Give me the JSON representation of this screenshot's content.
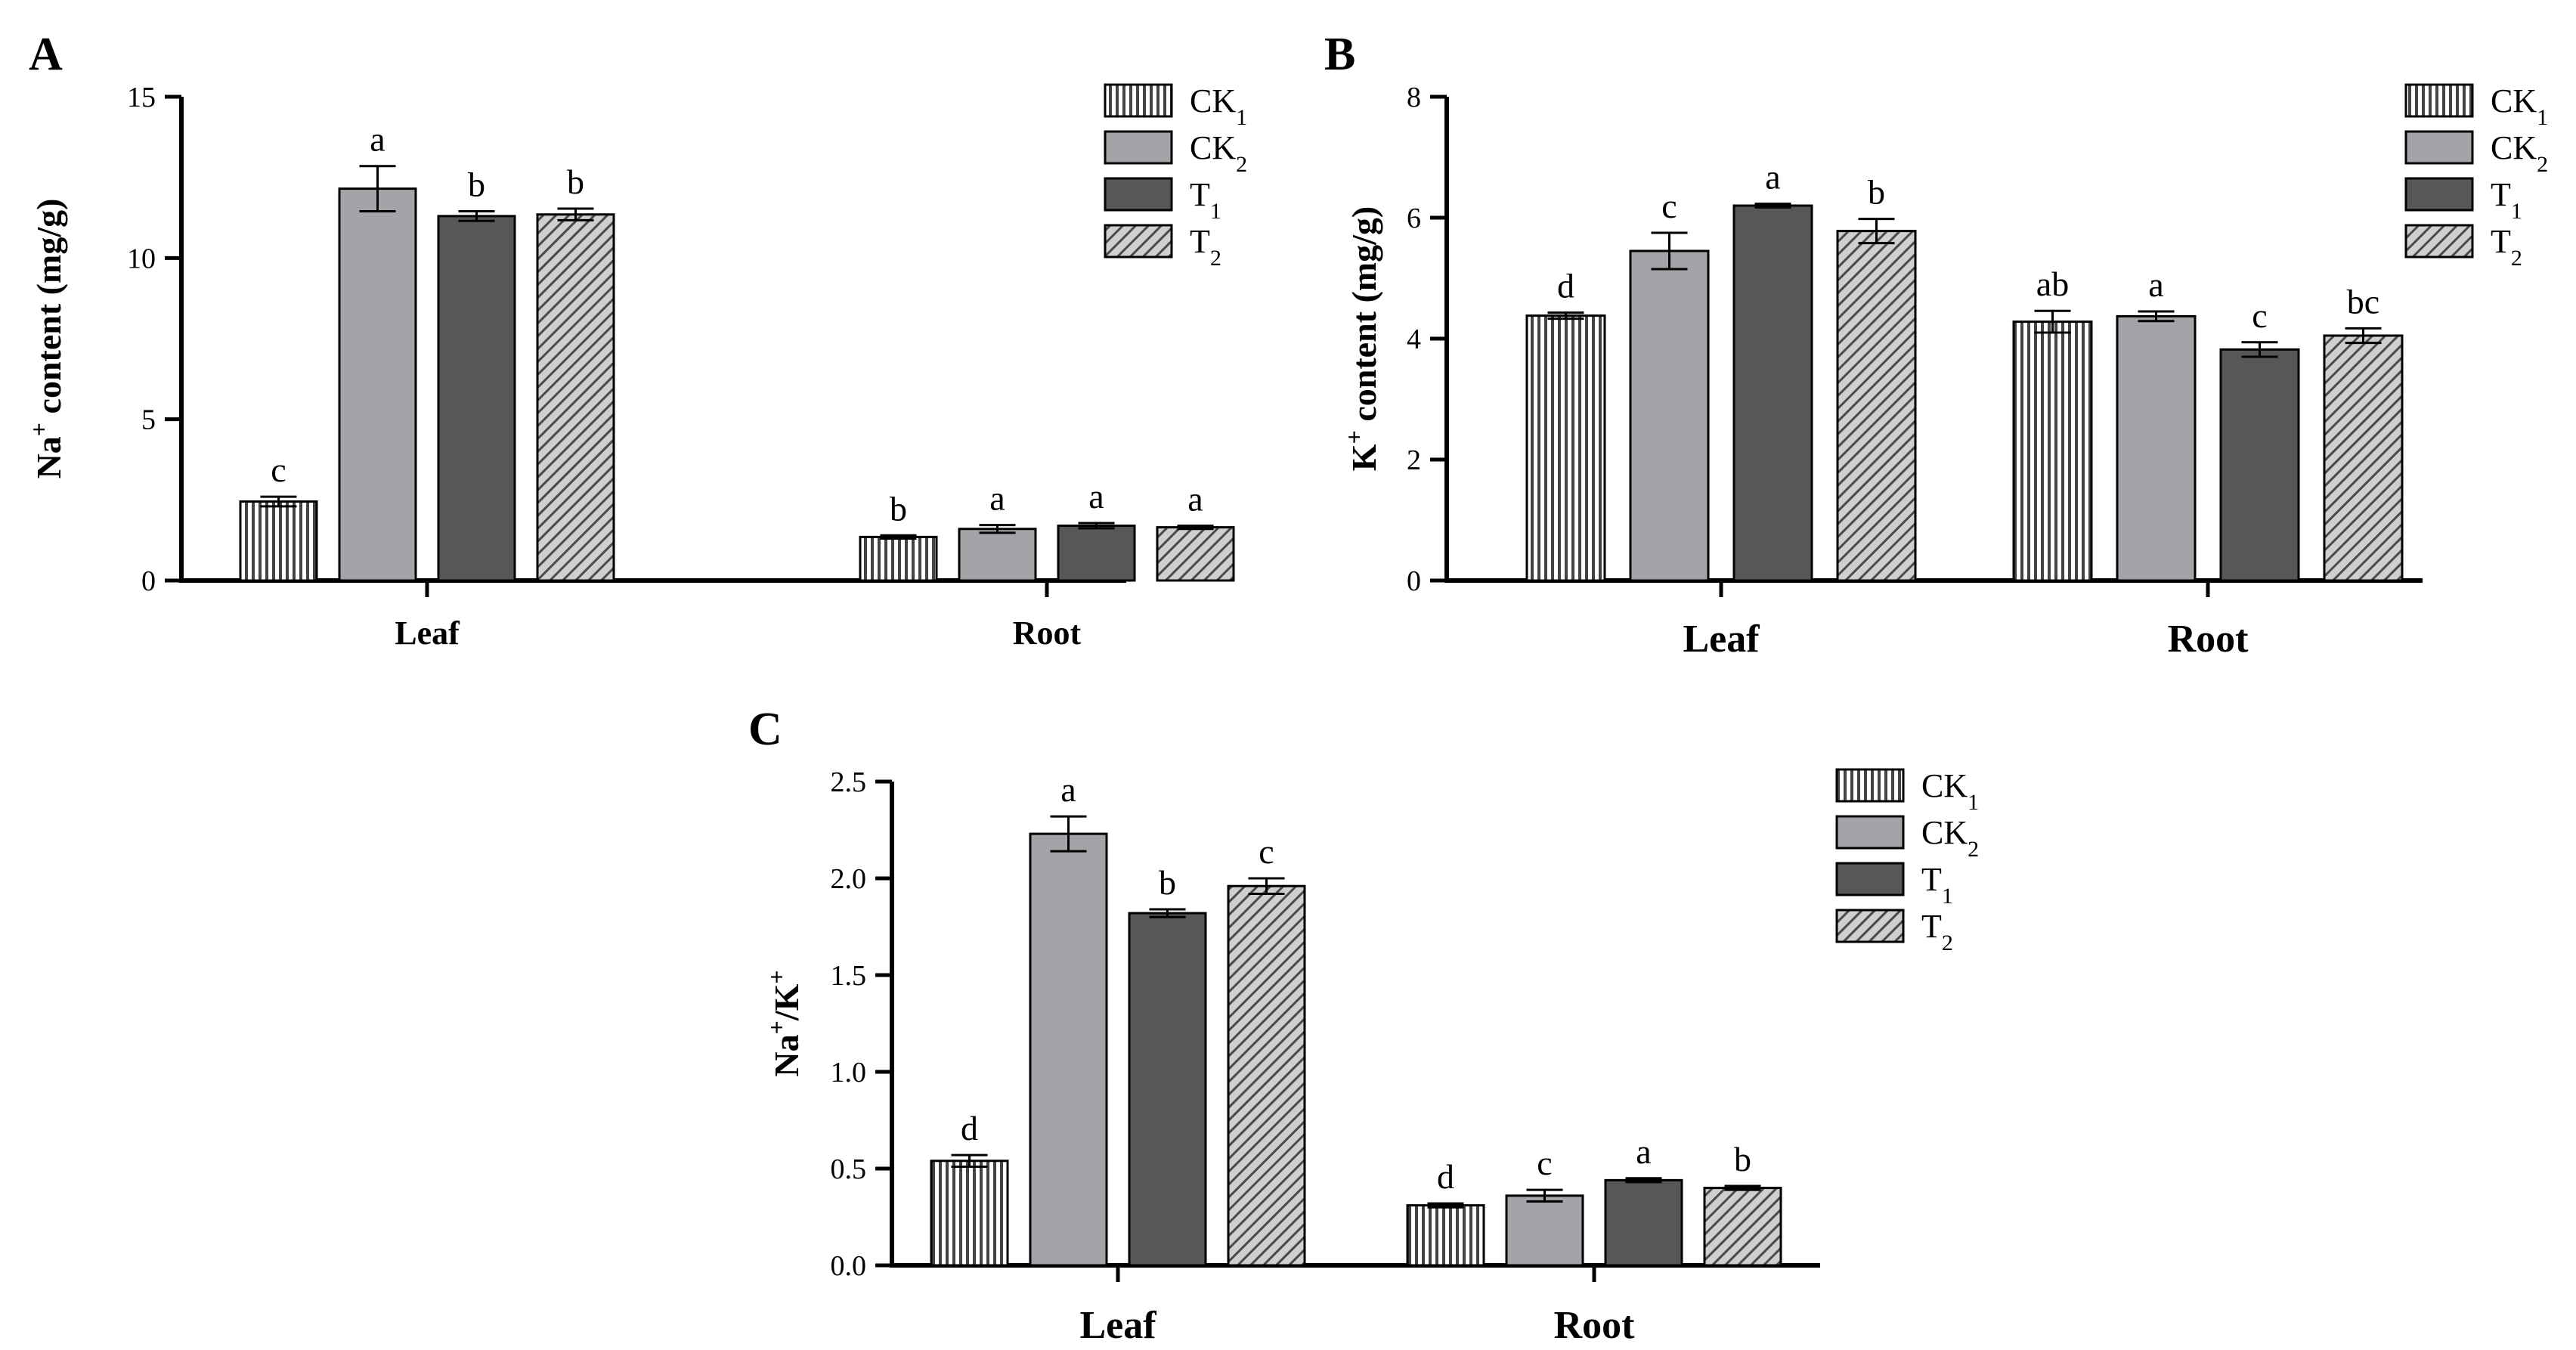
{
  "colors": {
    "CK1_fill": "#ffffff",
    "CK1_stripe": "#444444",
    "CK2_fill": "#a2a4a7",
    "T1_fill": "#575757",
    "T2_fill": "#cfcfcf",
    "T2_stripe": "#4a4a4a",
    "axis": "#000000"
  },
  "legend": [
    {
      "key": "CK1",
      "main": "CK",
      "sub": "1"
    },
    {
      "key": "CK2",
      "main": "CK",
      "sub": "2"
    },
    {
      "key": "T1",
      "main": "T",
      "sub": "1"
    },
    {
      "key": "T2",
      "main": "T",
      "sub": "2"
    }
  ],
  "chart_data": [
    {
      "id": "A",
      "panel_label": "A",
      "type": "bar",
      "ylabel": {
        "main": "Na",
        "sup": "+",
        "rest": " content (mg/g)"
      },
      "ylim": [
        0,
        15
      ],
      "yticks": [
        0,
        5,
        10,
        15
      ],
      "ytick_labels": [
        "0",
        "5",
        "10",
        "15"
      ],
      "categories": [
        "Leaf",
        "Root"
      ],
      "series": [
        {
          "name": "CK1",
          "values": [
            2.45,
            1.35
          ],
          "errors": [
            0.15,
            0.05
          ],
          "letters": [
            "c",
            "b"
          ]
        },
        {
          "name": "CK2",
          "values": [
            12.15,
            1.6
          ],
          "errors": [
            0.7,
            0.12
          ],
          "letters": [
            "a",
            "a"
          ]
        },
        {
          "name": "T1",
          "values": [
            11.3,
            1.7
          ],
          "errors": [
            0.15,
            0.08
          ],
          "letters": [
            "b",
            "a"
          ]
        },
        {
          "name": "T2",
          "values": [
            11.35,
            1.65
          ],
          "errors": [
            0.18,
            0.05
          ],
          "letters": [
            "b",
            "a"
          ]
        }
      ]
    },
    {
      "id": "B",
      "panel_label": "B",
      "type": "bar",
      "ylabel": {
        "main": "K",
        "sup": "+",
        "rest": " content (mg/g)"
      },
      "ylim": [
        0,
        8
      ],
      "yticks": [
        0,
        2,
        4,
        6,
        8
      ],
      "ytick_labels": [
        "0",
        "2",
        "4",
        "6",
        "8"
      ],
      "categories": [
        "Leaf",
        "Root"
      ],
      "series": [
        {
          "name": "CK1",
          "values": [
            4.38,
            4.28
          ],
          "errors": [
            0.05,
            0.18
          ],
          "letters": [
            "d",
            "ab"
          ]
        },
        {
          "name": "CK2",
          "values": [
            5.45,
            4.37
          ],
          "errors": [
            0.3,
            0.08
          ],
          "letters": [
            "c",
            "a"
          ]
        },
        {
          "name": "T1",
          "values": [
            6.2,
            3.82
          ],
          "errors": [
            0.03,
            0.12
          ],
          "letters": [
            "a",
            "c"
          ]
        },
        {
          "name": "T2",
          "values": [
            5.78,
            4.05
          ],
          "errors": [
            0.2,
            0.12
          ],
          "letters": [
            "b",
            "bc"
          ]
        }
      ]
    },
    {
      "id": "C",
      "panel_label": "C",
      "type": "bar",
      "ylabel": {
        "main": "Na",
        "sup": "+",
        "rest": "/K",
        "sup2": "+"
      },
      "ylim": [
        0,
        2.5
      ],
      "yticks": [
        0,
        0.5,
        1.0,
        1.5,
        2.0,
        2.5
      ],
      "ytick_labels": [
        "0.0",
        "0.5",
        "1.0",
        "1.5",
        "2.0",
        "2.5"
      ],
      "categories": [
        "Leaf",
        "Root"
      ],
      "series": [
        {
          "name": "CK1",
          "values": [
            0.54,
            0.31
          ],
          "errors": [
            0.03,
            0.01
          ],
          "letters": [
            "d",
            "d"
          ]
        },
        {
          "name": "CK2",
          "values": [
            2.23,
            0.36
          ],
          "errors": [
            0.09,
            0.03
          ],
          "letters": [
            "a",
            "c"
          ]
        },
        {
          "name": "T1",
          "values": [
            1.82,
            0.44
          ],
          "errors": [
            0.02,
            0.01
          ],
          "letters": [
            "b",
            "a"
          ]
        },
        {
          "name": "T2",
          "values": [
            1.96,
            0.4
          ],
          "errors": [
            0.04,
            0.01
          ],
          "letters": [
            "c",
            "b"
          ]
        }
      ]
    }
  ]
}
